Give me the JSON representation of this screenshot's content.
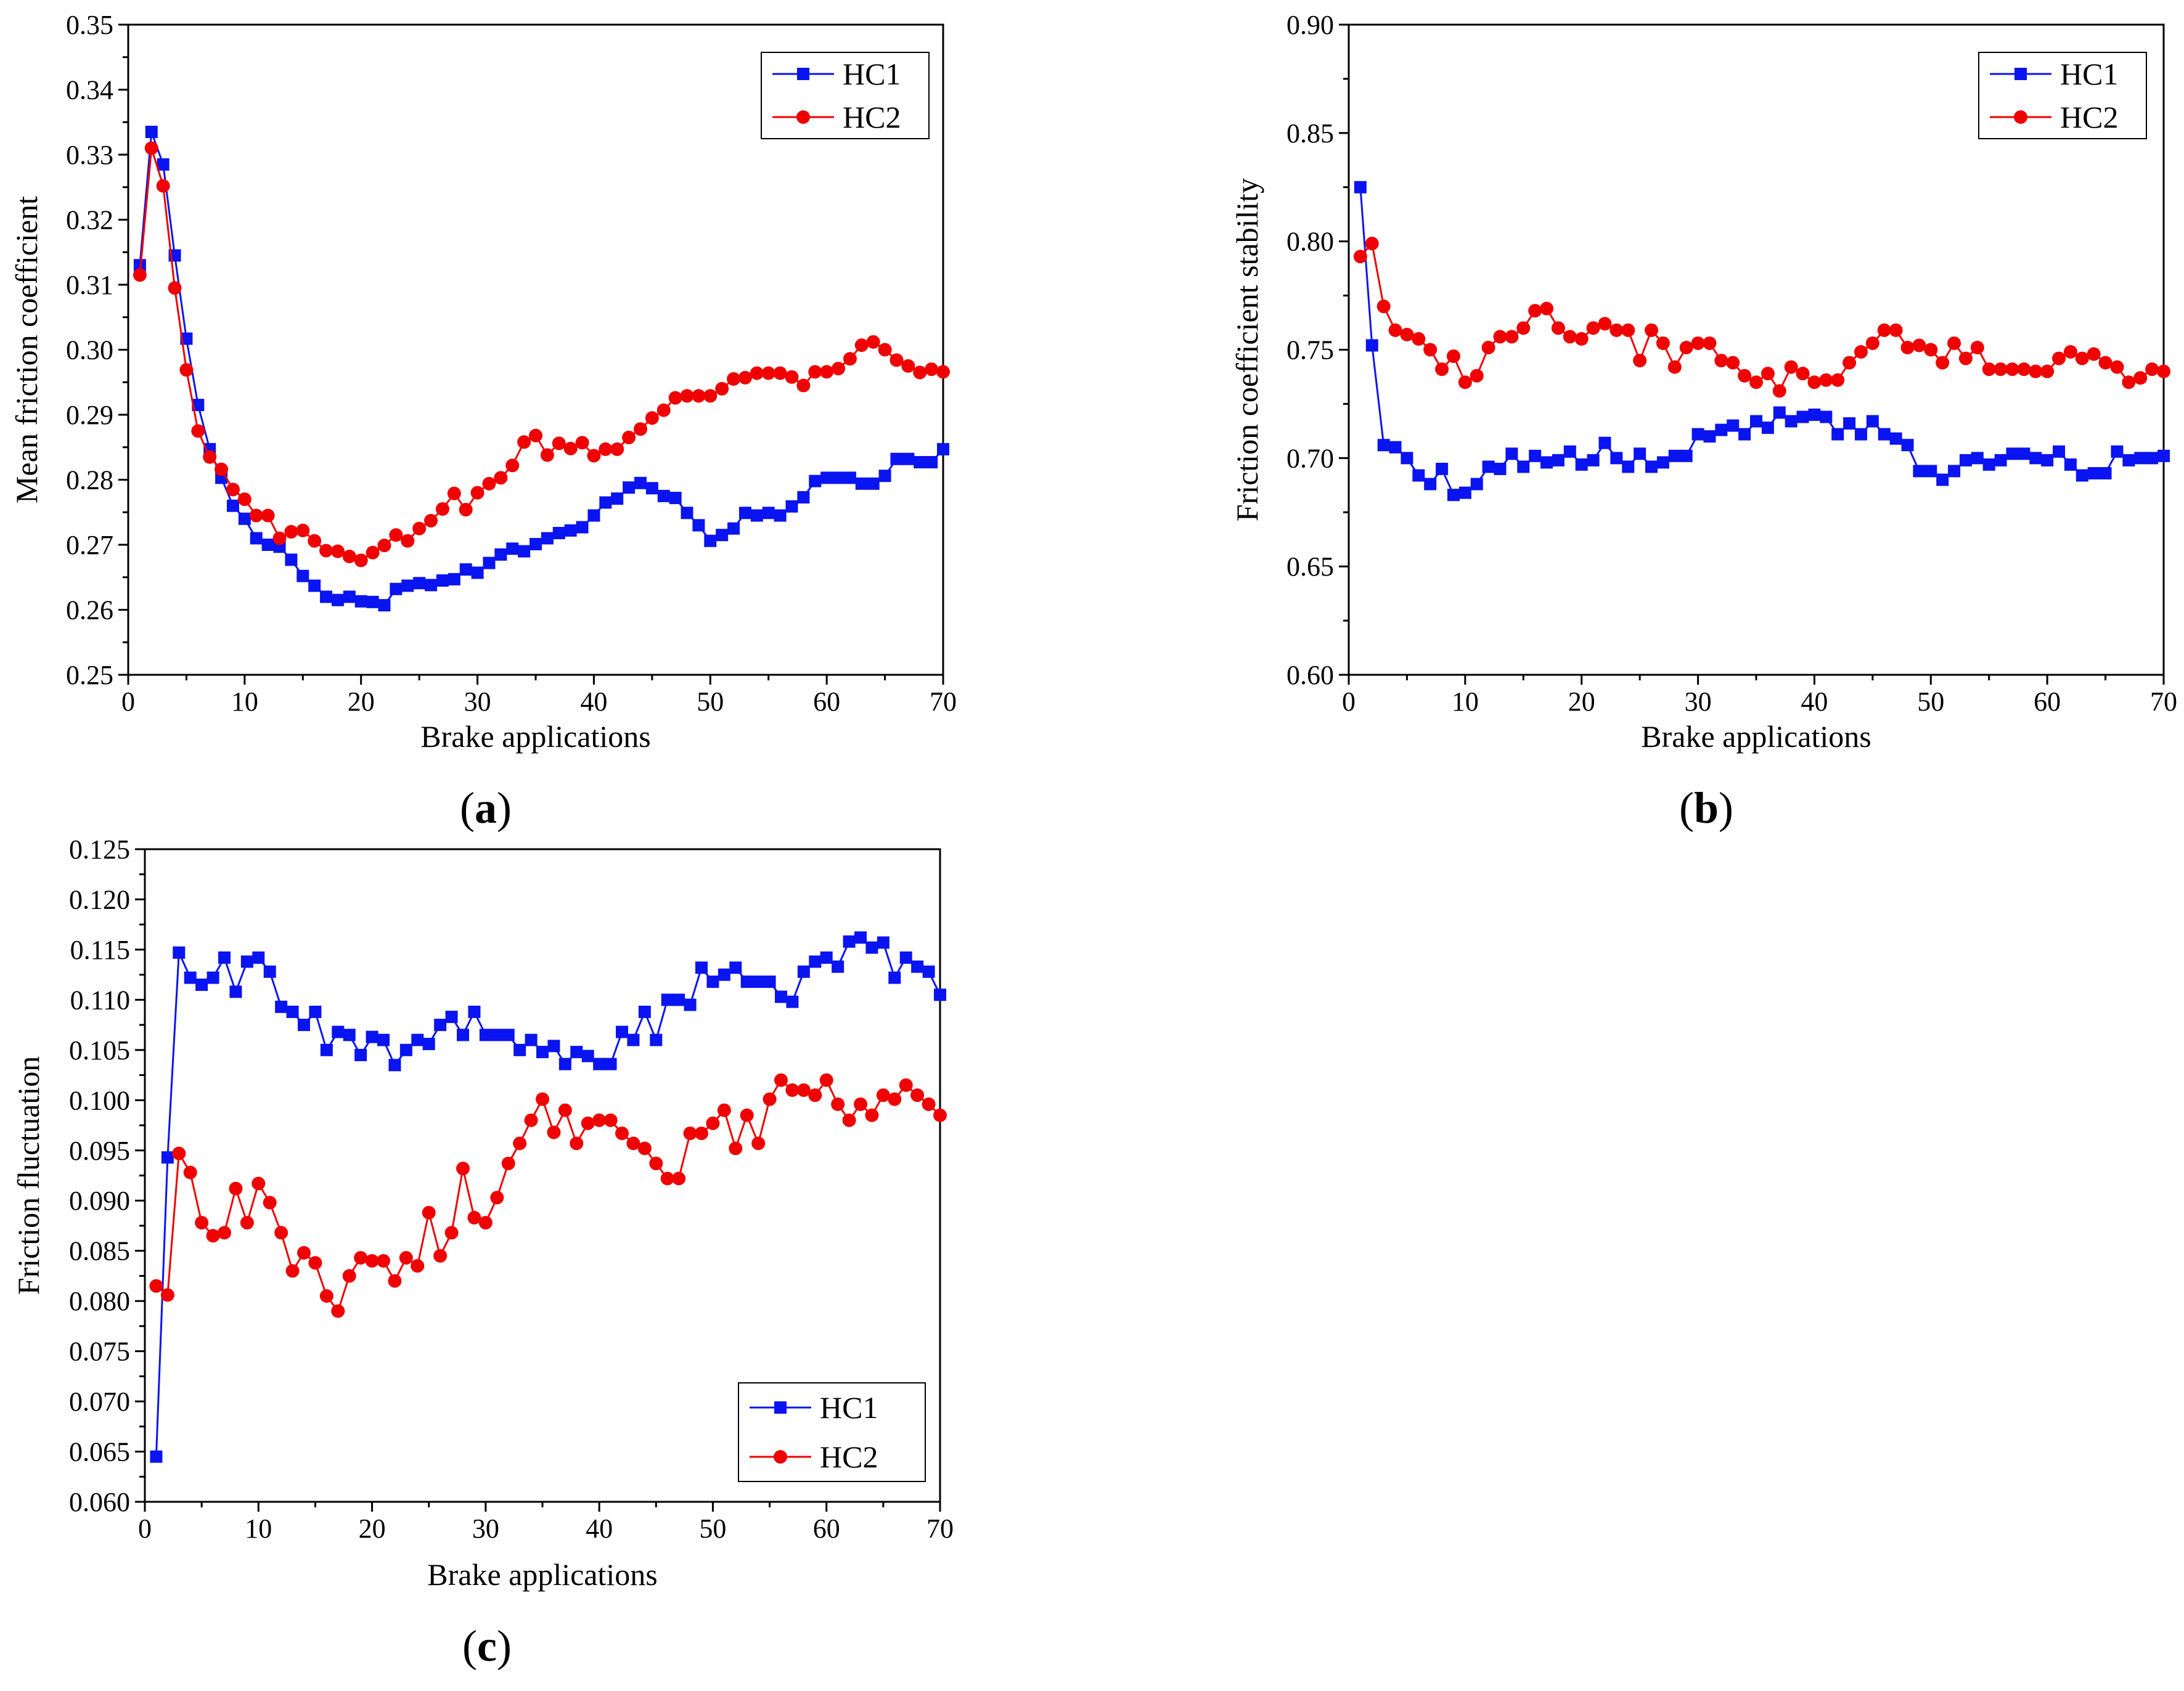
{
  "colors": {
    "HC1": "#0a14f0",
    "HC2": "#f00000",
    "axis": "#000000"
  },
  "chart_data": [
    {
      "id": "a",
      "type": "line",
      "panel_label": "a",
      "xlabel": "Brake applications",
      "ylabel": "Mean friction coefficient",
      "xlim": [
        0,
        70
      ],
      "ylim": [
        0.25,
        0.35
      ],
      "xticks": [
        0,
        10,
        20,
        30,
        40,
        50,
        60,
        70
      ],
      "yticks": [
        0.25,
        0.26,
        0.27,
        0.28,
        0.29,
        0.3,
        0.31,
        0.32,
        0.33,
        0.34,
        0.35
      ],
      "ytick_labels": [
        "0.25",
        "0.26",
        "0.27",
        "0.28",
        "0.29",
        "0.30",
        "0.31",
        "0.32",
        "0.33",
        "0.34",
        "0.35"
      ],
      "legend_position": "top-right",
      "x": [
        1,
        2,
        3,
        4,
        5,
        6,
        7,
        8,
        9,
        10,
        11,
        12,
        13,
        14,
        15,
        16,
        17,
        18,
        19,
        20,
        21,
        22,
        23,
        24,
        25,
        26,
        27,
        28,
        29,
        30,
        31,
        32,
        33,
        34,
        35,
        36,
        37,
        38,
        39,
        40,
        41,
        42,
        43,
        44,
        45,
        46,
        47,
        48,
        49,
        50,
        51,
        52,
        53,
        54,
        55,
        56,
        57,
        58,
        59,
        60,
        61,
        62,
        63,
        64,
        65,
        66,
        67,
        68,
        69,
        70
      ],
      "series": [
        {
          "name": "HC1",
          "marker": "square",
          "values": [
            0.313,
            0.3335,
            0.3285,
            0.3145,
            0.3017,
            0.2915,
            0.2847,
            0.2803,
            0.276,
            0.274,
            0.271,
            0.27,
            0.2697,
            0.2677,
            0.2652,
            0.2637,
            0.262,
            0.2615,
            0.262,
            0.2613,
            0.2612,
            0.2607,
            0.2632,
            0.2637,
            0.2641,
            0.2638,
            0.2645,
            0.2647,
            0.2662,
            0.2657,
            0.2672,
            0.2685,
            0.2694,
            0.269,
            0.2701,
            0.271,
            0.2718,
            0.2722,
            0.2727,
            0.2745,
            0.2765,
            0.2771,
            0.2788,
            0.2795,
            0.2787,
            0.2775,
            0.2772,
            0.2749,
            0.273,
            0.2706,
            0.2715,
            0.2725,
            0.2749,
            0.2745,
            0.2749,
            0.2745,
            0.2759,
            0.2773,
            0.2798,
            0.2803,
            0.2803,
            0.2803,
            0.2794,
            0.2794,
            0.2806,
            0.2832,
            0.2832,
            0.2827,
            0.2827,
            0.2847
          ]
        },
        {
          "name": "HC2",
          "marker": "circle",
          "values": [
            0.3115,
            0.331,
            0.3252,
            0.3095,
            0.2969,
            0.2875,
            0.2835,
            0.2816,
            0.2785,
            0.277,
            0.2745,
            0.2745,
            0.271,
            0.272,
            0.2722,
            0.2706,
            0.2691,
            0.269,
            0.2682,
            0.2676,
            0.2688,
            0.2699,
            0.2715,
            0.2706,
            0.2725,
            0.2737,
            0.2755,
            0.2779,
            0.2754,
            0.278,
            0.2794,
            0.2803,
            0.2822,
            0.2858,
            0.2868,
            0.2838,
            0.2856,
            0.2848,
            0.2857,
            0.2837,
            0.2847,
            0.2847,
            0.2865,
            0.2878,
            0.2895,
            0.2907,
            0.2926,
            0.2929,
            0.2929,
            0.2929,
            0.294,
            0.2955,
            0.2957,
            0.2964,
            0.2964,
            0.2964,
            0.2958,
            0.2945,
            0.2966,
            0.2966,
            0.2971,
            0.2986,
            0.3007,
            0.3012,
            0.3,
            0.2984,
            0.2975,
            0.2965,
            0.297,
            0.2966
          ]
        }
      ]
    },
    {
      "id": "b",
      "type": "line",
      "panel_label": "b",
      "xlabel": "Brake applications",
      "ylabel": "Friction coefficient stability",
      "xlim": [
        0,
        70
      ],
      "ylim": [
        0.6,
        0.9
      ],
      "xticks": [
        0,
        10,
        20,
        30,
        40,
        50,
        60,
        70
      ],
      "yticks": [
        0.6,
        0.65,
        0.7,
        0.75,
        0.8,
        0.85,
        0.9
      ],
      "ytick_labels": [
        "0.60",
        "0.65",
        "0.70",
        "0.75",
        "0.80",
        "0.85",
        "0.90"
      ],
      "legend_position": "top-right",
      "x": [
        1,
        2,
        3,
        4,
        5,
        6,
        7,
        8,
        9,
        10,
        11,
        12,
        13,
        14,
        15,
        16,
        17,
        18,
        19,
        20,
        21,
        22,
        23,
        24,
        25,
        26,
        27,
        28,
        29,
        30,
        31,
        32,
        33,
        34,
        35,
        36,
        37,
        38,
        39,
        40,
        41,
        42,
        43,
        44,
        45,
        46,
        47,
        48,
        49,
        50,
        51,
        52,
        53,
        54,
        55,
        56,
        57,
        58,
        59,
        60,
        61,
        62,
        63,
        64,
        65,
        66,
        67,
        68,
        69,
        70
      ],
      "series": [
        {
          "name": "HC1",
          "marker": "square",
          "values": [
            0.825,
            0.752,
            0.706,
            0.705,
            0.7,
            0.692,
            0.688,
            0.695,
            0.683,
            0.684,
            0.688,
            0.696,
            0.695,
            0.702,
            0.696,
            0.701,
            0.698,
            0.699,
            0.703,
            0.697,
            0.699,
            0.707,
            0.7,
            0.696,
            0.702,
            0.696,
            0.698,
            0.701,
            0.701,
            0.711,
            0.71,
            0.713,
            0.715,
            0.711,
            0.717,
            0.714,
            0.721,
            0.717,
            0.719,
            0.72,
            0.719,
            0.711,
            0.716,
            0.711,
            0.717,
            0.711,
            0.709,
            0.706,
            0.694,
            0.694,
            0.69,
            0.694,
            0.699,
            0.7,
            0.697,
            0.699,
            0.702,
            0.702,
            0.7,
            0.699,
            0.703,
            0.697,
            0.692,
            0.693,
            0.693,
            0.703,
            0.699,
            0.7,
            0.7,
            0.701
          ]
        },
        {
          "name": "HC2",
          "marker": "circle",
          "values": [
            0.793,
            0.799,
            0.77,
            0.759,
            0.757,
            0.755,
            0.75,
            0.741,
            0.747,
            0.735,
            0.738,
            0.751,
            0.756,
            0.756,
            0.76,
            0.768,
            0.769,
            0.76,
            0.756,
            0.755,
            0.76,
            0.762,
            0.759,
            0.759,
            0.745,
            0.759,
            0.753,
            0.742,
            0.751,
            0.753,
            0.753,
            0.745,
            0.744,
            0.738,
            0.735,
            0.739,
            0.731,
            0.742,
            0.739,
            0.735,
            0.736,
            0.736,
            0.744,
            0.749,
            0.753,
            0.759,
            0.759,
            0.751,
            0.752,
            0.75,
            0.744,
            0.753,
            0.746,
            0.751,
            0.741,
            0.741,
            0.741,
            0.741,
            0.74,
            0.74,
            0.746,
            0.749,
            0.746,
            0.748,
            0.744,
            0.742,
            0.735,
            0.737,
            0.741,
            0.74
          ]
        }
      ]
    },
    {
      "id": "c",
      "type": "line",
      "panel_label": "c",
      "xlabel": "Brake applications",
      "ylabel": "Friction fluctuation",
      "xlim": [
        0,
        70
      ],
      "ylim": [
        0.06,
        0.125
      ],
      "xticks": [
        0,
        10,
        20,
        30,
        40,
        50,
        60,
        70
      ],
      "yticks": [
        0.06,
        0.065,
        0.07,
        0.075,
        0.08,
        0.085,
        0.09,
        0.095,
        0.1,
        0.105,
        0.11,
        0.115,
        0.12,
        0.125
      ],
      "ytick_labels": [
        "0.060",
        "0.065",
        "0.070",
        "0.075",
        "0.080",
        "0.085",
        "0.090",
        "0.095",
        "0.100",
        "0.105",
        "0.110",
        "0.115",
        "0.120",
        "0.125"
      ],
      "legend_position": "bottom-right",
      "x": [
        1,
        2,
        3,
        4,
        5,
        6,
        7,
        8,
        9,
        10,
        11,
        12,
        13,
        14,
        15,
        16,
        17,
        18,
        19,
        20,
        21,
        22,
        23,
        24,
        25,
        26,
        27,
        28,
        29,
        30,
        31,
        32,
        33,
        34,
        35,
        36,
        37,
        38,
        39,
        40,
        41,
        42,
        43,
        44,
        45,
        46,
        47,
        48,
        49,
        50,
        51,
        52,
        53,
        54,
        55,
        56,
        57,
        58,
        59,
        60,
        61,
        62,
        63,
        64,
        65,
        66,
        67,
        68,
        69,
        70
      ],
      "series": [
        {
          "name": "HC1",
          "marker": "square",
          "values": [
            0.0645,
            0.0943,
            0.1147,
            0.1122,
            0.1115,
            0.1122,
            0.1142,
            0.1108,
            0.1138,
            0.1142,
            0.1128,
            0.1093,
            0.1088,
            0.1075,
            0.1088,
            0.105,
            0.1068,
            0.1065,
            0.1045,
            0.1063,
            0.106,
            0.1035,
            0.105,
            0.106,
            0.1056,
            0.1075,
            0.1083,
            0.1065,
            0.1088,
            0.1065,
            0.1065,
            0.1065,
            0.105,
            0.106,
            0.1048,
            0.1054,
            0.1036,
            0.1048,
            0.1044,
            0.1036,
            0.1036,
            0.1068,
            0.106,
            0.1088,
            0.106,
            0.11,
            0.11,
            0.1095,
            0.1132,
            0.1118,
            0.1125,
            0.1132,
            0.1118,
            0.1118,
            0.1118,
            0.1103,
            0.1098,
            0.1128,
            0.1138,
            0.1142,
            0.1133,
            0.1158,
            0.1162,
            0.1152,
            0.1157,
            0.1122,
            0.1142,
            0.1133,
            0.1128,
            0.1105
          ]
        },
        {
          "name": "HC2",
          "marker": "circle",
          "values": [
            0.0815,
            0.0806,
            0.0947,
            0.0928,
            0.0878,
            0.0865,
            0.0868,
            0.0912,
            0.0878,
            0.0917,
            0.0898,
            0.0868,
            0.083,
            0.0848,
            0.0838,
            0.0805,
            0.079,
            0.0825,
            0.0843,
            0.084,
            0.084,
            0.082,
            0.0843,
            0.0835,
            0.0888,
            0.0845,
            0.0868,
            0.0932,
            0.0883,
            0.0878,
            0.0903,
            0.0937,
            0.0957,
            0.098,
            0.1001,
            0.0968,
            0.099,
            0.0957,
            0.0977,
            0.098,
            0.098,
            0.0967,
            0.0957,
            0.0952,
            0.0937,
            0.0922,
            0.0922,
            0.0967,
            0.0967,
            0.0977,
            0.099,
            0.0952,
            0.0985,
            0.0957,
            0.1001,
            0.102,
            0.101,
            0.101,
            0.1005,
            0.102,
            0.0996,
            0.098,
            0.0996,
            0.0985,
            0.1005,
            0.1001,
            0.1015,
            0.1005,
            0.0996,
            0.0985
          ]
        }
      ]
    }
  ]
}
